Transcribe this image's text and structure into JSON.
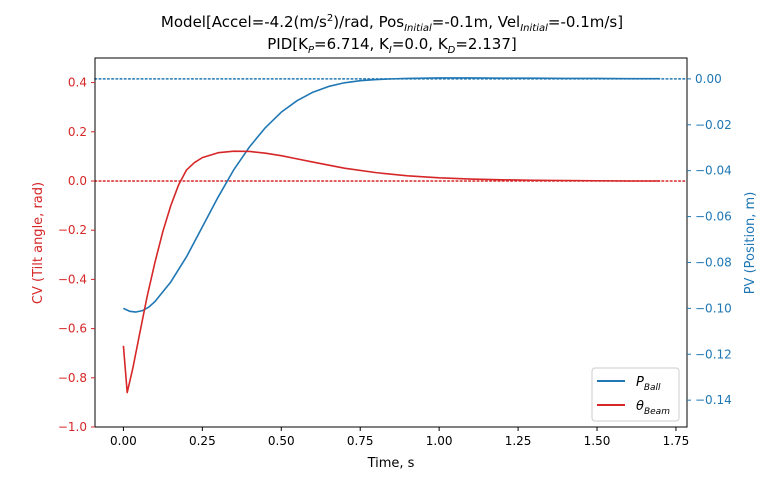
{
  "chart_data": {
    "type": "line",
    "title": {
      "line1": {
        "prefix": "Model[Accel=-4.2(m/s",
        "sup": "2",
        "mid1": ")/rad, Pos",
        "sub1": "Initial",
        "mid2": "=-0.1m, Vel",
        "sub2": "Initial",
        "suffix": "=-0.1m/s]"
      },
      "line2": {
        "p1": "PID[K",
        "s1": "P",
        "p2": "=6.714, K",
        "s2": "I",
        "p3": "=0.0, K",
        "s3": "D",
        "p4": "=2.137]"
      }
    },
    "xlabel": "Time, s",
    "ylabel_left": "CV (Tilt angle, rad)",
    "ylabel_right": "PV (Position, m)",
    "xlim": [
      -0.09,
      1.785
    ],
    "ylim_left": [
      -1.0,
      0.5
    ],
    "ylim_right": [
      -0.1517,
      0.0091
    ],
    "x_ticks": [
      "0.00",
      "0.25",
      "0.50",
      "0.75",
      "1.00",
      "1.25",
      "1.50",
      "1.75"
    ],
    "x_tick_values": [
      0,
      0.25,
      0.5,
      0.75,
      1.0,
      1.25,
      1.5,
      1.75
    ],
    "left_ticks": [
      "0.4",
      "0.2",
      "0.0",
      "−0.2",
      "−0.4",
      "−0.6",
      "−0.8",
      "−1.0"
    ],
    "left_tick_values": [
      0.4,
      0.2,
      0.0,
      -0.2,
      -0.4,
      -0.6,
      -0.8,
      -1.0
    ],
    "right_ticks": [
      "0.00",
      "−0.02",
      "−0.04",
      "−0.06",
      "−0.08",
      "−0.10",
      "−0.12",
      "−0.14"
    ],
    "right_tick_values": [
      0.0,
      -0.02,
      -0.04,
      -0.06,
      -0.08,
      -0.1,
      -0.12,
      -0.14
    ],
    "colors": {
      "left": "#d62728",
      "right": "#1f77b4",
      "axis": "#000000"
    },
    "reference_lines": [
      {
        "axis": "left",
        "value": 0.0,
        "color": "#d62728",
        "style": "dotted"
      },
      {
        "axis": "right",
        "value": 0.0,
        "color": "#1f77b4",
        "style": "dotted"
      }
    ],
    "legend": {
      "placement": "lower-right"
    },
    "series": [
      {
        "name": {
          "base": "P",
          "sub": "Ball"
        },
        "axis": "right",
        "color": "#1f77b4",
        "x": [
          0.0,
          0.02,
          0.04,
          0.06,
          0.08,
          0.1,
          0.15,
          0.2,
          0.25,
          0.3,
          0.35,
          0.4,
          0.45,
          0.5,
          0.55,
          0.6,
          0.65,
          0.7,
          0.75,
          0.8,
          0.85,
          0.9,
          0.95,
          1.0,
          1.05,
          1.1,
          1.2,
          1.3,
          1.4,
          1.5,
          1.6,
          1.7
        ],
        "y": [
          -0.1,
          -0.1013,
          -0.1016,
          -0.101,
          -0.0995,
          -0.097,
          -0.0885,
          -0.0775,
          -0.0645,
          -0.0515,
          -0.0395,
          -0.0295,
          -0.0212,
          -0.0145,
          -0.0095,
          -0.0058,
          -0.0033,
          -0.0017,
          -0.0008,
          -0.0003,
          0.0,
          0.0002,
          0.0003,
          0.0004,
          0.0004,
          0.0004,
          0.0003,
          0.0003,
          0.0002,
          0.0002,
          0.0001,
          0.0001
        ]
      },
      {
        "name": {
          "base": "θ",
          "sub": "Beam"
        },
        "axis": "left",
        "color": "#d62728",
        "x": [
          0.0,
          0.012,
          0.03,
          0.05,
          0.075,
          0.1,
          0.125,
          0.15,
          0.175,
          0.2,
          0.225,
          0.25,
          0.3,
          0.35,
          0.4,
          0.45,
          0.5,
          0.55,
          0.6,
          0.7,
          0.8,
          0.9,
          1.0,
          1.1,
          1.2,
          1.3,
          1.4,
          1.5,
          1.6,
          1.7
        ],
        "y": [
          -0.67,
          -0.86,
          -0.76,
          -0.63,
          -0.47,
          -0.33,
          -0.205,
          -0.1,
          -0.015,
          0.045,
          0.075,
          0.095,
          0.115,
          0.121,
          0.12,
          0.113,
          0.103,
          0.09,
          0.077,
          0.052,
          0.034,
          0.021,
          0.013,
          0.008,
          0.005,
          0.003,
          0.002,
          0.001,
          0.0,
          0.0
        ]
      }
    ]
  }
}
